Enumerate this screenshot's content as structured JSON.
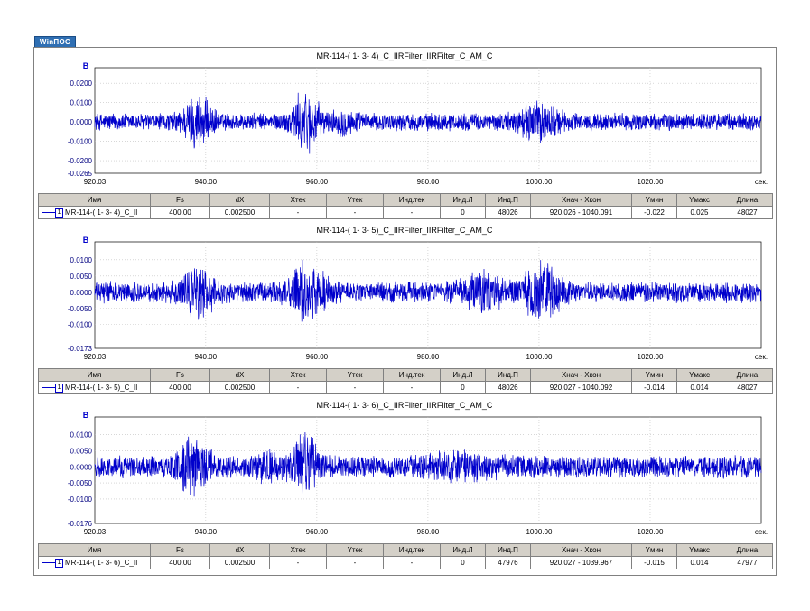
{
  "logo_text": "WinПОС",
  "colors": {
    "signal": "#0000cc",
    "tick_text": "#000080",
    "grid": "#c0c0c0",
    "header_bg": "#d4d0c8"
  },
  "columns": [
    "Имя",
    "Fs",
    "dX",
    "Xтек",
    "Yтек",
    "Инд.тек",
    "Инд.Л",
    "Инд.П",
    "Xнач - Xкон",
    "Yмин",
    "Yмакс",
    "Длина"
  ],
  "chart_data": [
    {
      "type": "line",
      "title": "MR-114-( 1- 3- 4)_C_IIRFilter_IIRFilter_C_AM_C",
      "ylabel": "В",
      "xlabel": "сек.",
      "xlim": [
        920.03,
        1040.091
      ],
      "ylim": [
        -0.0265,
        0.028
      ],
      "x_ticks": [
        "920.03",
        "940.00",
        "960.00",
        "980.00",
        "1000.00",
        "1020.00"
      ],
      "y_ticks": [
        {
          "v": 0.02,
          "label": "0.0200"
        },
        {
          "v": 0.01,
          "label": "0.0100"
        },
        {
          "v": 0.0,
          "label": "0.0000"
        },
        {
          "v": -0.01,
          "label": "-0.0100"
        },
        {
          "v": -0.02,
          "label": "-0.0200"
        },
        {
          "v": -0.0265,
          "label": "-0.0265"
        }
      ],
      "grid": true,
      "signal": {
        "base_amplitude": 0.005,
        "bursts": [
          {
            "t": 938.5,
            "width": 2.5,
            "amp": 0.012
          },
          {
            "t": 958.0,
            "width": 2.5,
            "amp": 0.014
          },
          {
            "t": 1000.0,
            "width": 3.5,
            "amp": 0.008
          },
          {
            "t": 965.0,
            "width": 2.0,
            "amp": 0.004
          }
        ],
        "max": 0.025,
        "min": -0.022
      },
      "info_row": {
        "name": "MR-114-( 1- 3- 4)_C_II",
        "series_index": "1",
        "fs": "400.00",
        "dx": "0.002500",
        "xtek": "-",
        "ytek": "-",
        "ind_tek": "-",
        "ind_l": "0",
        "ind_p": "48026",
        "x_range": "920.026 - 1040.091",
        "ymin": "-0.022",
        "ymax": "0.025",
        "length": "48027"
      }
    },
    {
      "type": "line",
      "title": "MR-114-( 1- 3- 5)_C_IIRFilter_IIRFilter_C_AM_C",
      "ylabel": "В",
      "xlabel": "сек.",
      "xlim": [
        920.03,
        1040.092
      ],
      "ylim": [
        -0.0173,
        0.0155
      ],
      "x_ticks": [
        "920.03",
        "940.00",
        "960.00",
        "980.00",
        "1000.00",
        "1020.00"
      ],
      "y_ticks": [
        {
          "v": 0.01,
          "label": "0.0100"
        },
        {
          "v": 0.005,
          "label": "0.0050"
        },
        {
          "v": 0.0,
          "label": "0.0000"
        },
        {
          "v": -0.005,
          "label": "-0.0050"
        },
        {
          "v": -0.01,
          "label": "-0.0100"
        },
        {
          "v": -0.0173,
          "label": "-0.0173"
        }
      ],
      "grid": true,
      "signal": {
        "base_amplitude": 0.0035,
        "bursts": [
          {
            "t": 938.5,
            "width": 3.0,
            "amp": 0.006
          },
          {
            "t": 958.5,
            "width": 3.0,
            "amp": 0.008
          },
          {
            "t": 990.0,
            "width": 4.0,
            "amp": 0.004
          },
          {
            "t": 1000.5,
            "width": 3.0,
            "amp": 0.008
          }
        ],
        "max": 0.014,
        "min": -0.014
      },
      "info_row": {
        "name": "MR-114-( 1- 3- 5)_C_II",
        "series_index": "1",
        "fs": "400.00",
        "dx": "0.002500",
        "xtek": "-",
        "ytek": "-",
        "ind_tek": "-",
        "ind_l": "0",
        "ind_p": "48026",
        "x_range": "920.027 - 1040.092",
        "ymin": "-0.014",
        "ymax": "0.014",
        "length": "48027"
      }
    },
    {
      "type": "line",
      "title": "MR-114-( 1- 3- 6)_C_IIRFilter_IIRFilter_C_AM_C",
      "ylabel": "В",
      "xlabel": "сек.",
      "xlim": [
        920.03,
        1039.967
      ],
      "ylim": [
        -0.0176,
        0.0155
      ],
      "x_ticks": [
        "920.03",
        "940.00",
        "960.00",
        "980.00",
        "1000.00",
        "1020.00"
      ],
      "y_ticks": [
        {
          "v": 0.01,
          "label": "0.0100"
        },
        {
          "v": 0.005,
          "label": "0.0050"
        },
        {
          "v": 0.0,
          "label": "0.0000"
        },
        {
          "v": -0.005,
          "label": "-0.0050"
        },
        {
          "v": -0.01,
          "label": "-0.0100"
        },
        {
          "v": -0.0176,
          "label": "-0.0176"
        }
      ],
      "grid": true,
      "signal": {
        "base_amplitude": 0.0038,
        "bursts": [
          {
            "t": 938.0,
            "width": 3.0,
            "amp": 0.007
          },
          {
            "t": 958.0,
            "width": 2.5,
            "amp": 0.009
          },
          {
            "t": 951.0,
            "width": 2.0,
            "amp": 0.003
          },
          {
            "t": 985.0,
            "width": 6.0,
            "amp": 0.002
          }
        ],
        "max": 0.014,
        "min": -0.015
      },
      "info_row": {
        "name": "MR-114-( 1- 3- 6)_C_II",
        "series_index": "1",
        "fs": "400.00",
        "dx": "0.002500",
        "xtek": "-",
        "ytek": "-",
        "ind_tek": "-",
        "ind_l": "0",
        "ind_p": "47976",
        "x_range": "920.027 - 1039.967",
        "ymin": "-0.015",
        "ymax": "0.014",
        "length": "47977"
      }
    }
  ]
}
